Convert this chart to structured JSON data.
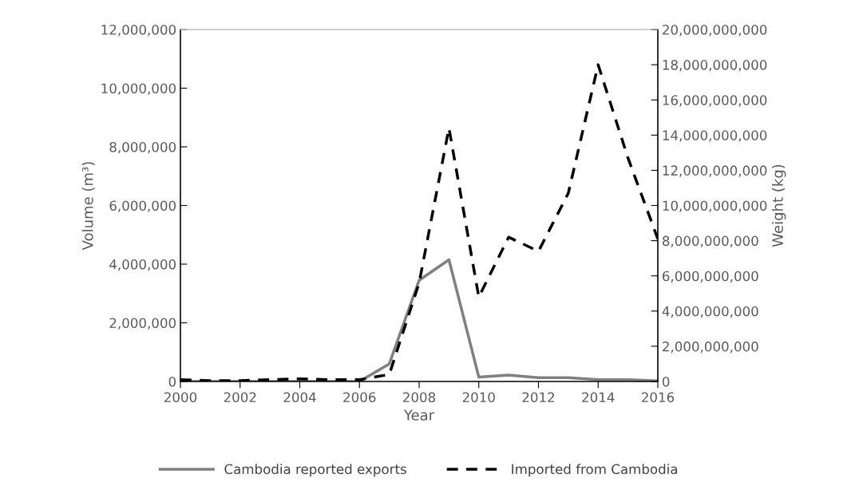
{
  "chart_data": {
    "type": "line",
    "xlabel": "Year",
    "ylabel": "Volume (m³)",
    "y2label": "Weight (kg)",
    "x": [
      2000,
      2001,
      2002,
      2003,
      2004,
      2005,
      2006,
      2007,
      2008,
      2009,
      2010,
      2011,
      2012,
      2013,
      2014,
      2015,
      2016
    ],
    "series": [
      {
        "name": "Cambodia reported exports",
        "color": "#7f7f7f",
        "line_style": "solid",
        "values": [
          0,
          0,
          0,
          0,
          0,
          0,
          0,
          600000,
          3450000,
          4150000,
          150000,
          220000,
          130000,
          130000,
          60000,
          60000,
          20000
        ]
      },
      {
        "name": "Imported from Cambodia",
        "color": "#000000",
        "line_style": "dashed",
        "axis": "y2",
        "values": [
          100000000,
          50000000,
          50000000,
          100000000,
          150000000,
          100000000,
          100000000,
          400000000,
          5600000000,
          14400000000,
          4800000000,
          8200000000,
          7400000000,
          10700000000,
          18000000000,
          12700000000,
          8100000000
        ]
      }
    ],
    "xlim": [
      2000,
      2016
    ],
    "xticks": [
      2000,
      2002,
      2004,
      2006,
      2008,
      2010,
      2012,
      2014,
      2016
    ],
    "ylim": [
      0,
      12000000
    ],
    "yticks": [
      {
        "value": 0,
        "label": "0"
      },
      {
        "value": 2000000,
        "label": "2,000,000"
      },
      {
        "value": 4000000,
        "label": "4,000,000"
      },
      {
        "value": 6000000,
        "label": "6,000,000"
      },
      {
        "value": 8000000,
        "label": "8,000,000"
      },
      {
        "value": 10000000,
        "label": "10,000,000"
      },
      {
        "value": 12000000,
        "label": "12,000,000"
      }
    ],
    "y2lim": [
      0,
      20000000000
    ],
    "y2ticks": [
      {
        "value": 0,
        "label": "0"
      },
      {
        "value": 2000000000,
        "label": "2,000,000,000"
      },
      {
        "value": 4000000000,
        "label": "4,000,000,000"
      },
      {
        "value": 6000000000,
        "label": "6,000,000,000"
      },
      {
        "value": 8000000000,
        "label": "8,000,000,000"
      },
      {
        "value": 10000000000,
        "label": "10,000,000,000"
      },
      {
        "value": 12000000000,
        "label": "12,000,000,000"
      },
      {
        "value": 14000000000,
        "label": "14,000,000,000"
      },
      {
        "value": 16000000000,
        "label": "16,000,000,000"
      },
      {
        "value": 18000000000,
        "label": "18,000,000,000"
      },
      {
        "value": 20000000000,
        "label": "20,000,000,000"
      }
    ],
    "grid": false,
    "legend": "bottom"
  }
}
